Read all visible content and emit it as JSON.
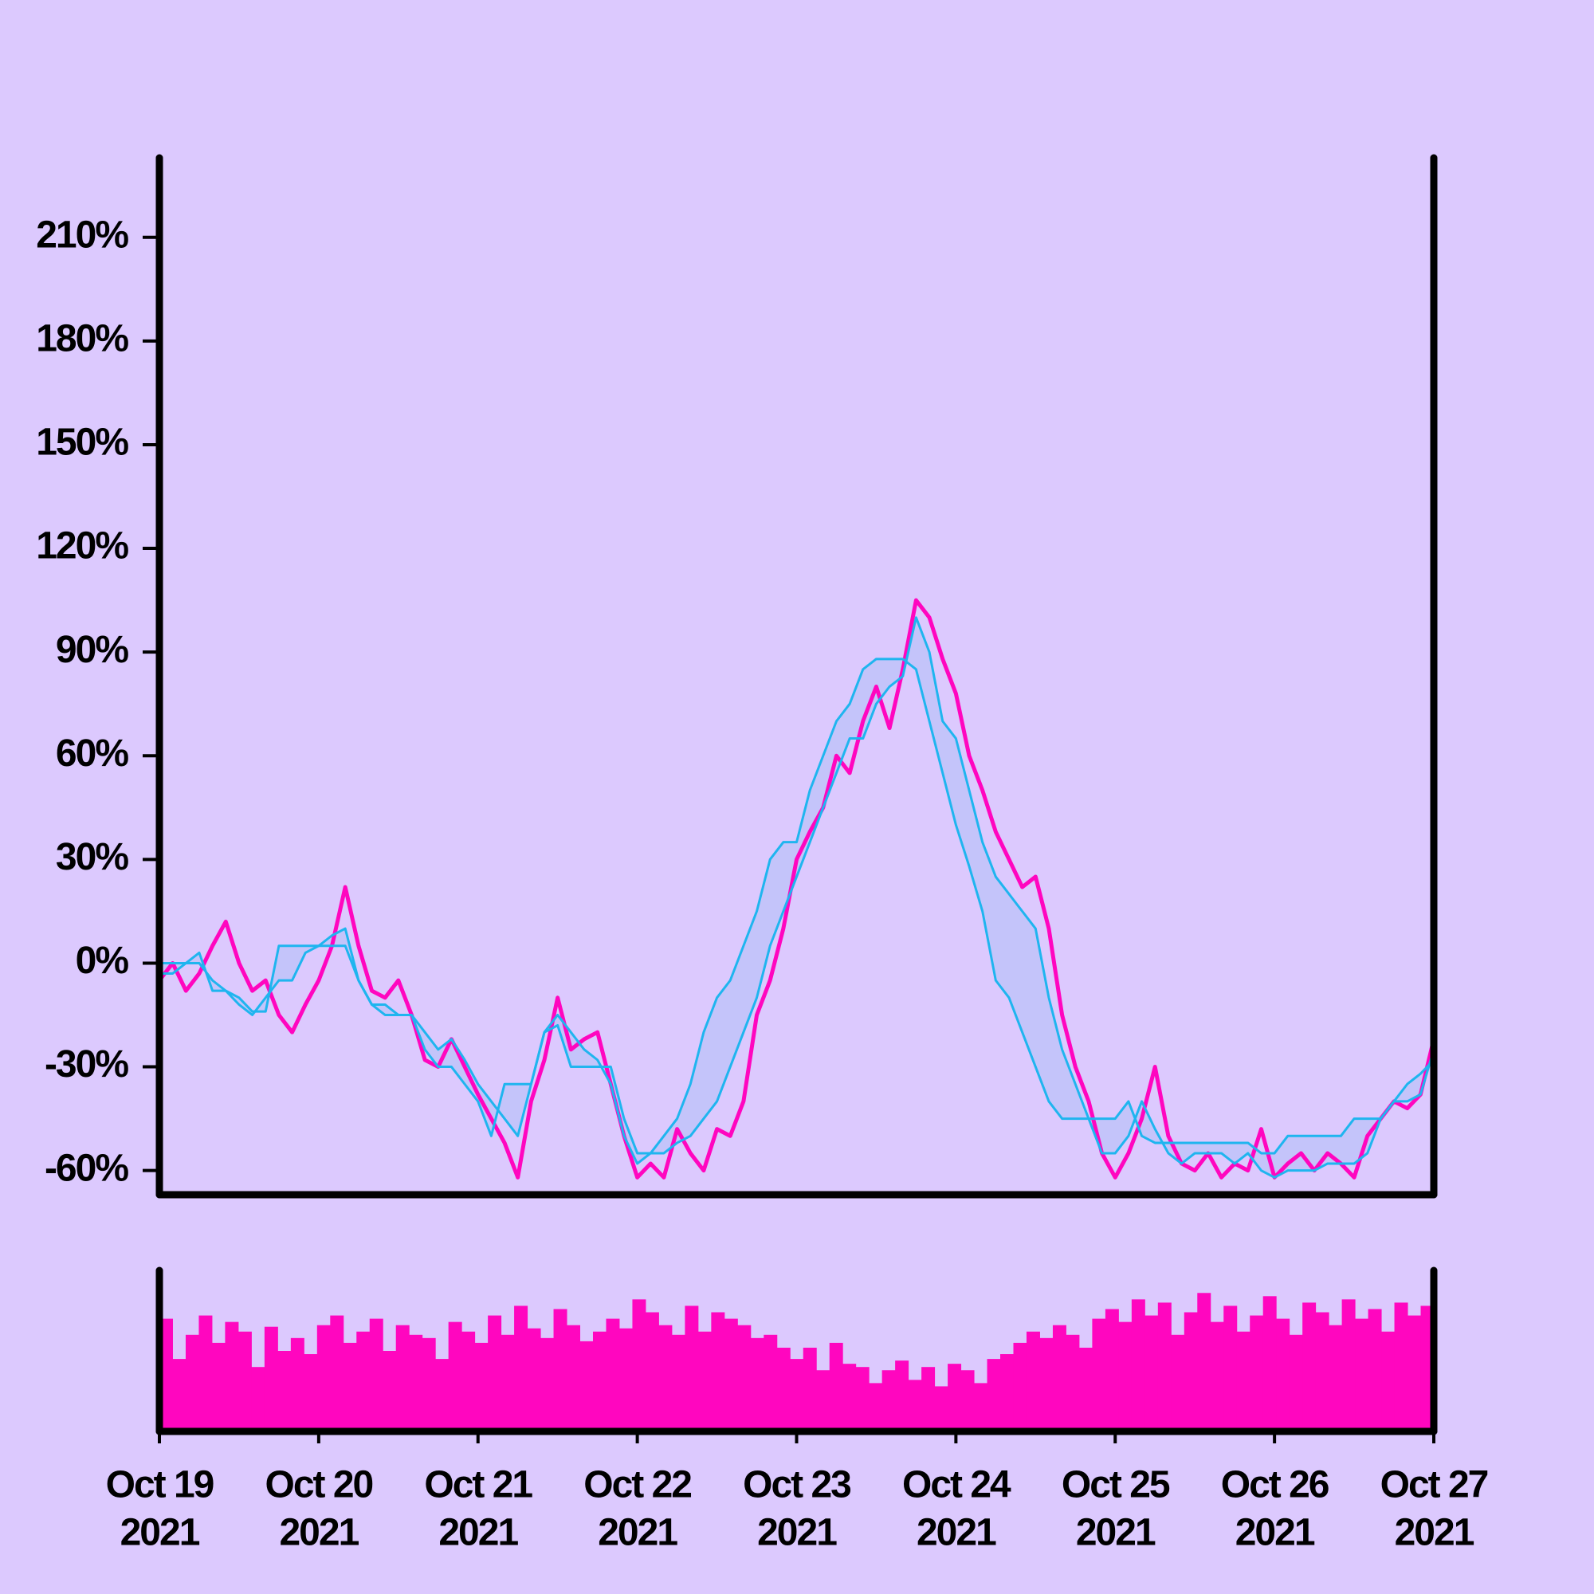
{
  "chart_data": [
    {
      "type": "line",
      "xlim": [
        "2021-10-19",
        "2021-10-27"
      ],
      "ylim": [
        -67,
        233
      ],
      "yticks": [
        {
          "value": -60,
          "label": "-60%"
        },
        {
          "value": -30,
          "label": "-30%"
        },
        {
          "value": 0,
          "label": "0%"
        },
        {
          "value": 30,
          "label": "30%"
        },
        {
          "value": 60,
          "label": "60%"
        },
        {
          "value": 90,
          "label": "90%"
        },
        {
          "value": 120,
          "label": "120%"
        },
        {
          "value": 150,
          "label": "150%"
        },
        {
          "value": 180,
          "label": "180%"
        },
        {
          "value": 210,
          "label": "210%"
        }
      ],
      "band_fill": "#c4c4fa",
      "series": [
        {
          "color": "#ff06bf",
          "width": 5,
          "values": [
            -5,
            0,
            -8,
            -3,
            5,
            12,
            0,
            -8,
            -5,
            -15,
            -20,
            -12,
            -5,
            5,
            22,
            5,
            -8,
            -10,
            -5,
            -15,
            -28,
            -30,
            -22,
            -30,
            -38,
            -45,
            -52,
            -62,
            -40,
            -28,
            -10,
            -25,
            -22,
            -20,
            -35,
            -50,
            -62,
            -58,
            -62,
            -48,
            -55,
            -60,
            -48,
            -50,
            -40,
            -15,
            -5,
            10,
            30,
            38,
            45,
            60,
            55,
            70,
            80,
            68,
            85,
            105,
            100,
            88,
            78,
            60,
            50,
            38,
            30,
            22,
            25,
            10,
            -15,
            -30,
            -40,
            -55,
            -62,
            -55,
            -45,
            -30,
            -50,
            -58,
            -60,
            -55,
            -62,
            -58,
            -60,
            -48,
            -62,
            -58,
            -55,
            -60,
            -55,
            -58,
            -62,
            -50,
            -45,
            -40,
            -42,
            -38,
            -22
          ]
        },
        {
          "color": "#1fb5ef",
          "width": 3,
          "band": true,
          "values": [
            0,
            0,
            0,
            0,
            -5,
            -8,
            -10,
            -14,
            -14,
            5,
            5,
            5,
            5,
            5,
            5,
            -5,
            -12,
            -15,
            -15,
            -15,
            -25,
            -30,
            -30,
            -35,
            -40,
            -50,
            -35,
            -35,
            -35,
            -20,
            -18,
            -30,
            -30,
            -30,
            -30,
            -45,
            -55,
            -55,
            -50,
            -45,
            -35,
            -20,
            -10,
            -5,
            5,
            15,
            30,
            35,
            35,
            50,
            60,
            70,
            75,
            85,
            88,
            88,
            88,
            85,
            70,
            55,
            40,
            28,
            15,
            -5,
            -10,
            -20,
            -30,
            -40,
            -45,
            -45,
            -45,
            -45,
            -45,
            -40,
            -50,
            -52,
            -52,
            -52,
            -52,
            -52,
            -52,
            -52,
            -52,
            -55,
            -55,
            -50,
            -50,
            -50,
            -50,
            -50,
            -45,
            -45,
            -45,
            -40,
            -35,
            -32,
            -28
          ]
        },
        {
          "color": "#1fb5ef",
          "width": 3,
          "band": true,
          "values": [
            -3,
            -3,
            0,
            3,
            -8,
            -8,
            -12,
            -15,
            -10,
            -5,
            -5,
            3,
            5,
            8,
            10,
            -5,
            -12,
            -12,
            -15,
            -15,
            -20,
            -25,
            -22,
            -28,
            -35,
            -40,
            -45,
            -50,
            -35,
            -20,
            -15,
            -20,
            -25,
            -28,
            -35,
            -50,
            -58,
            -55,
            -55,
            -52,
            -50,
            -45,
            -40,
            -30,
            -20,
            -10,
            5,
            15,
            25,
            35,
            45,
            55,
            65,
            65,
            75,
            80,
            83,
            100,
            90,
            70,
            65,
            50,
            35,
            25,
            20,
            15,
            10,
            -10,
            -25,
            -35,
            -45,
            -55,
            -55,
            -50,
            -40,
            -48,
            -55,
            -58,
            -55,
            -55,
            -55,
            -58,
            -55,
            -60,
            -62,
            -60,
            -60,
            -60,
            -58,
            -58,
            -58,
            -55,
            -45,
            -40,
            -40,
            -38,
            -25
          ]
        }
      ]
    },
    {
      "type": "bar",
      "xlim": [
        "2021-10-19",
        "2021-10-27"
      ],
      "ylim": [
        0,
        100
      ],
      "color": "#ff06bf",
      "xticks": [
        {
          "value": "2021-10-19",
          "label": [
            "Oct 19",
            "2021"
          ]
        },
        {
          "value": "2021-10-20",
          "label": [
            "Oct 20",
            "2021"
          ]
        },
        {
          "value": "2021-10-21",
          "label": [
            "Oct 21",
            "2021"
          ]
        },
        {
          "value": "2021-10-22",
          "label": [
            "Oct 22",
            "2021"
          ]
        },
        {
          "value": "2021-10-23",
          "label": [
            "Oct 23",
            "2021"
          ]
        },
        {
          "value": "2021-10-24",
          "label": [
            "Oct 24",
            "2021"
          ]
        },
        {
          "value": "2021-10-25",
          "label": [
            "Oct 25",
            "2021"
          ]
        },
        {
          "value": "2021-10-26",
          "label": [
            "Oct 26",
            "2021"
          ]
        },
        {
          "value": "2021-10-27",
          "label": [
            "Oct 27",
            "2021"
          ]
        }
      ],
      "values": [
        70,
        45,
        60,
        72,
        55,
        68,
        62,
        40,
        65,
        50,
        58,
        48,
        66,
        72,
        55,
        62,
        70,
        50,
        66,
        60,
        58,
        45,
        68,
        62,
        55,
        72,
        60,
        78,
        64,
        58,
        76,
        66,
        56,
        62,
        70,
        64,
        82,
        74,
        66,
        60,
        78,
        62,
        74,
        70,
        66,
        58,
        60,
        52,
        45,
        52,
        38,
        55,
        42,
        40,
        30,
        38,
        44,
        32,
        40,
        28,
        42,
        38,
        30,
        45,
        48,
        55,
        62,
        58,
        66,
        60,
        52,
        70,
        76,
        68,
        82,
        72,
        80,
        60,
        74,
        86,
        68,
        78,
        62,
        72,
        84,
        70,
        60,
        80,
        74,
        66,
        82,
        70,
        76,
        62,
        80,
        72,
        78
      ]
    }
  ]
}
